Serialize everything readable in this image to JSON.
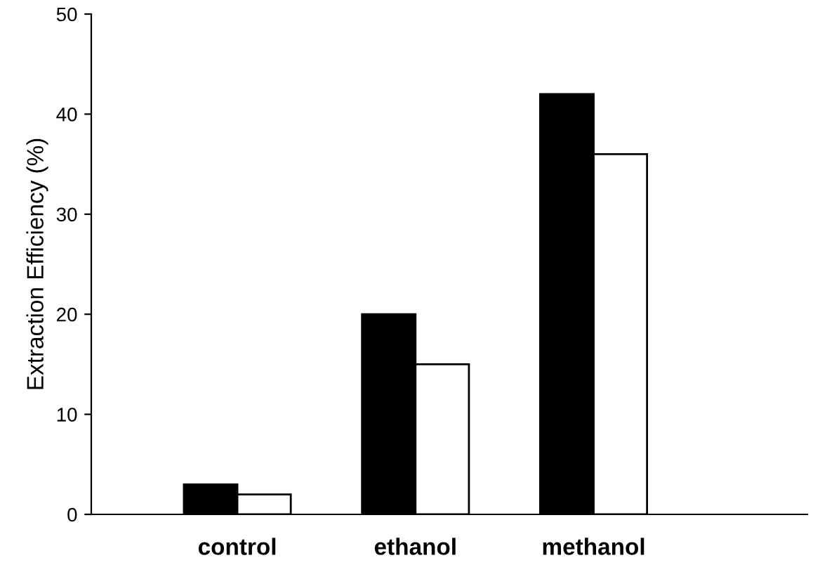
{
  "chart_data": {
    "type": "bar",
    "ylabel": "Extraction Efficiency (%)",
    "categories": [
      "control",
      "ethanol",
      "methanol"
    ],
    "series": [
      {
        "color": "#000000",
        "values": [
          3,
          20,
          42
        ]
      },
      {
        "color": "#ffffff",
        "values": [
          2,
          15,
          36
        ]
      }
    ],
    "ylim": [
      0,
      50
    ],
    "yticks": [
      0,
      10,
      20,
      30,
      40,
      50
    ],
    "grid": false,
    "legend": false
  }
}
